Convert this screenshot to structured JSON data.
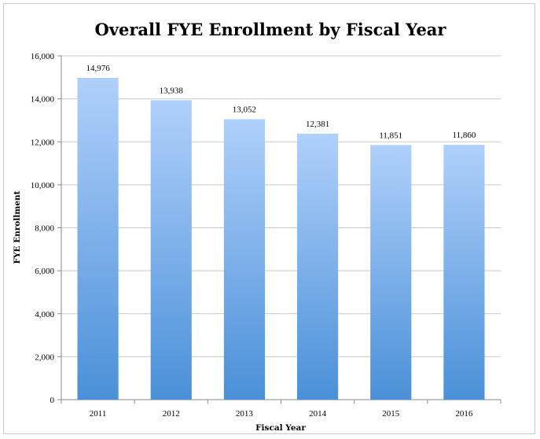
{
  "chart_data": {
    "type": "bar",
    "title": "Overall FYE Enrollment by Fiscal Year",
    "xlabel": "Fiscal Year",
    "ylabel": "FYE Enrollment",
    "categories": [
      "2011",
      "2012",
      "2013",
      "2014",
      "2015",
      "2016"
    ],
    "values": [
      14976,
      13938,
      13052,
      12381,
      11851,
      11860
    ],
    "value_labels": [
      "14,976",
      "13,938",
      "13,052",
      "12,381",
      "11,851",
      "11,860"
    ],
    "ylim": [
      0,
      16000
    ],
    "yticks": [
      0,
      2000,
      4000,
      6000,
      8000,
      10000,
      12000,
      14000,
      16000
    ],
    "ytick_labels": [
      "0",
      "2,000",
      "4,000",
      "6,000",
      "8,000",
      "10,000",
      "12,000",
      "14,000",
      "16,000"
    ],
    "grid": true,
    "legend": "none",
    "colors": {
      "bar_top": "#b0d0fb",
      "bar_bottom": "#4a90d8",
      "grid": "#c9c9c9"
    }
  }
}
